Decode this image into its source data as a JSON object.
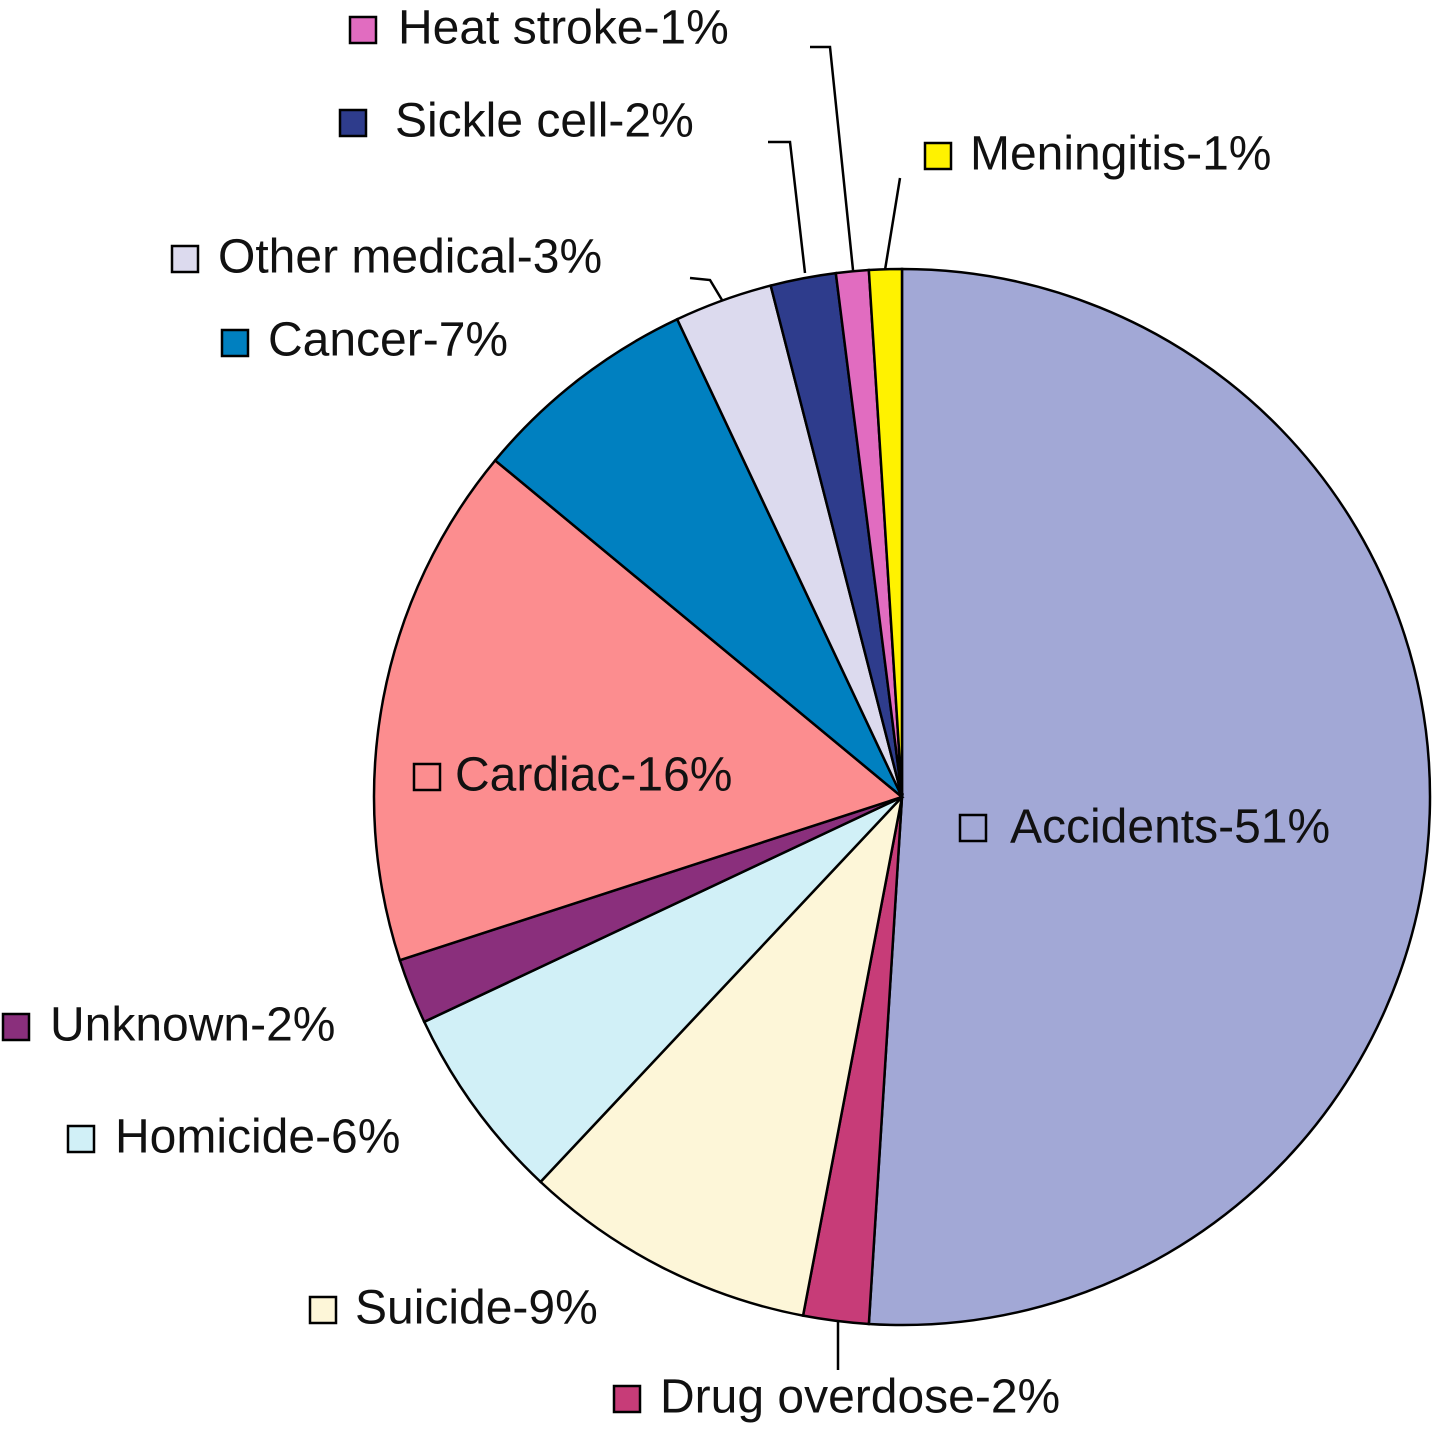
{
  "chart_data": {
    "type": "pie",
    "values": [
      51,
      2,
      9,
      6,
      2,
      16,
      7,
      3,
      2,
      1,
      1
    ],
    "value_labels": [
      "Accidents-51%",
      "Drug overdose-2%",
      "Suicide-9%",
      "Homicide-6%",
      "Unknown-2%",
      "Cardiac-16%",
      "Cancer-7%",
      "Other medical-3%",
      "Sickle cell-2%",
      "Heat stroke-1%",
      "Meningitis-1%"
    ],
    "colors": [
      "#a2a8d6",
      "#c73c78",
      "#fdf6d8",
      "#d1f0f7",
      "#8a2f7c",
      "#fc8d8f",
      "#0080c0",
      "#dcdaee",
      "#2e3c8c",
      "#e16cc0",
      "#fff200"
    ]
  }
}
